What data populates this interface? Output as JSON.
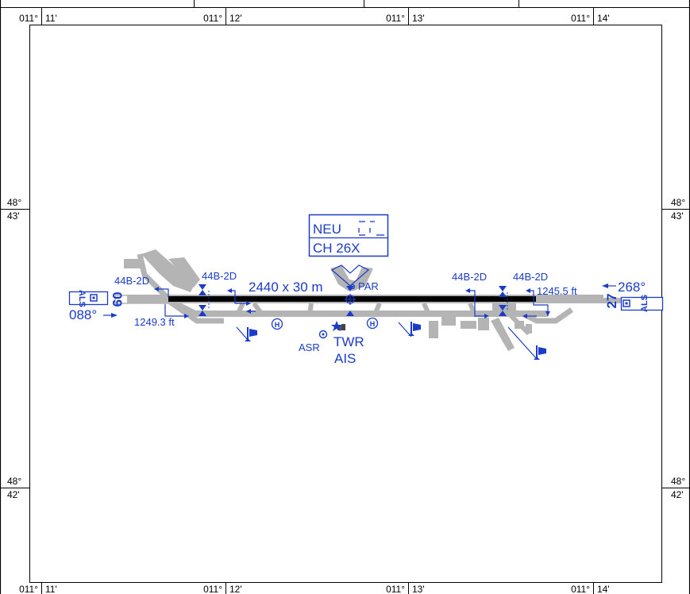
{
  "frame": {
    "top_lon": [
      {
        "deg": "011°",
        "min": "11'"
      },
      {
        "deg": "011°",
        "min": "12'"
      },
      {
        "deg": "011°",
        "min": "13'"
      },
      {
        "deg": "011°",
        "min": "14'"
      }
    ],
    "bottom_lon": [
      {
        "deg": "011°",
        "min": "11'"
      },
      {
        "deg": "011°",
        "min": "12'"
      },
      {
        "deg": "011°",
        "min": "13'"
      },
      {
        "deg": "011°",
        "min": "14'"
      }
    ],
    "left_lat": [
      {
        "deg": "48°",
        "min": "43'"
      },
      {
        "deg": "48°",
        "min": "42'"
      }
    ],
    "right_lat": [
      {
        "deg": "48°",
        "min": "43'"
      },
      {
        "deg": "48°",
        "min": "42'"
      }
    ]
  },
  "notice": {
    "line1": "NEU",
    "line2": "CH 26X"
  },
  "runway": {
    "dimensions": "2440 x 30 m",
    "left_designator": "09",
    "right_designator": "27",
    "left_heading": "088°",
    "right_heading": "268°",
    "left_elevation": "1249.3 ft",
    "right_elevation": "1245.5 ft",
    "left_als": "ALS",
    "right_als": "ALS"
  },
  "arresting_gear": {
    "west_1": "44B-2D",
    "west_2": "44B-2D",
    "east_1": "44B-2D",
    "east_2": "44B-2D"
  },
  "facilities": {
    "par": "PAR",
    "asr": "ASR",
    "twr": "TWR",
    "ais": "AIS",
    "heliport_symbol": "H"
  },
  "colors": {
    "symbol": "#1a3cc8",
    "runway": "#000000",
    "taxiway": "#b4b4b4",
    "frame": "#000000"
  }
}
